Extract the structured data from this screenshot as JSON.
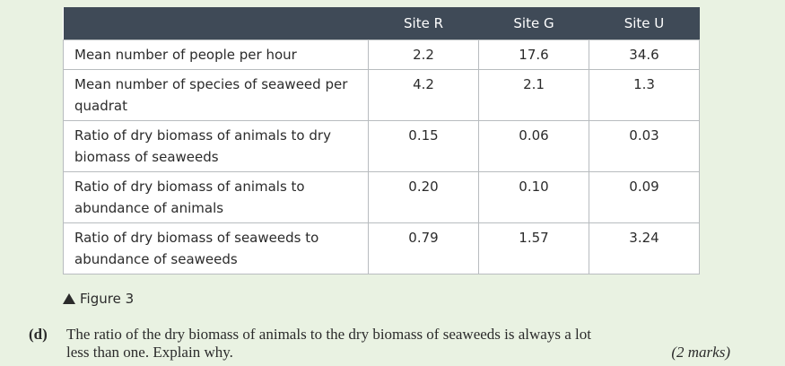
{
  "table": {
    "headers": [
      "",
      "Site R",
      "Site G",
      "Site U"
    ],
    "rows": [
      {
        "label": "Mean number of people per hour",
        "values": [
          "2.2",
          "17.6",
          "34.6"
        ]
      },
      {
        "label": "Mean number of species of seaweed per quadrat",
        "values": [
          "4.2",
          "2.1",
          "1.3"
        ]
      },
      {
        "label": "Ratio of dry biomass of animals to dry biomass of seaweeds",
        "values": [
          "0.15",
          "0.06",
          "0.03"
        ]
      },
      {
        "label": "Ratio of dry biomass of animals to abundance of animals",
        "values": [
          "0.20",
          "0.10",
          "0.09"
        ]
      },
      {
        "label": "Ratio of dry biomass of seaweeds to abundance of seaweeds",
        "values": [
          "0.79",
          "1.57",
          "3.24"
        ]
      }
    ]
  },
  "figure": {
    "caption": "Figure 3"
  },
  "question": {
    "number": "(d)",
    "line1": "The ratio of the dry biomass of animals to the dry biomass of seaweeds is always a lot",
    "line2": "less than one. Explain why.",
    "marks": "(2 marks)"
  },
  "colors": {
    "background": "#e9f2e2",
    "header": "#3f4a57",
    "border": "#b8bcbf"
  }
}
